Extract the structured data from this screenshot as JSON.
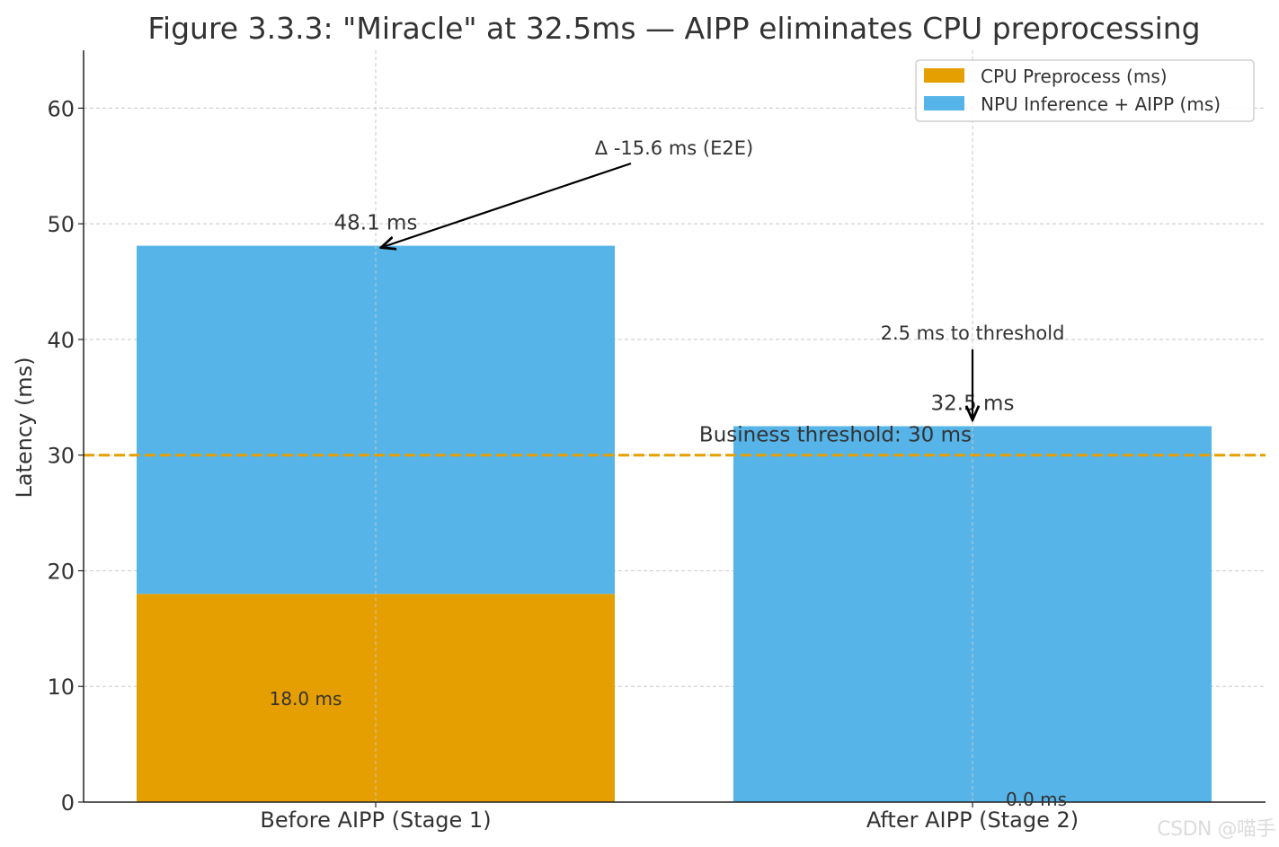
{
  "chart_data": {
    "type": "bar",
    "stacked": true,
    "title": "Figure 3.3.3: \"Miracle\" at 32.5ms — AIPP eliminates CPU preprocessing",
    "xlabel": "",
    "ylabel": "Latency (ms)",
    "ylim": [
      0,
      65
    ],
    "yticks": [
      0,
      10,
      20,
      30,
      40,
      50,
      60
    ],
    "grid": true,
    "legend_position": "top-right",
    "categories": [
      "Before AIPP (Stage 1)",
      "After AIPP (Stage 2)"
    ],
    "series": [
      {
        "name": "CPU Preprocess (ms)",
        "color": "#E69F00",
        "values": [
          18.0,
          0.0
        ]
      },
      {
        "name": "NPU Inference + AIPP (ms)",
        "color": "#56B4E9",
        "values": [
          30.1,
          32.5
        ]
      }
    ],
    "total_labels": [
      "48.1 ms",
      "32.5 ms"
    ],
    "segment_labels": [
      "18.0 ms",
      "0.0 ms"
    ],
    "threshold": {
      "value": 30,
      "label": "Business threshold: 30 ms",
      "color": "#E69F00"
    },
    "annotations": [
      {
        "text": "Δ -15.6 ms (E2E)",
        "target_category": 0,
        "target_value": 48.1
      },
      {
        "text": "2.5 ms to threshold",
        "target_category": 1,
        "target_value": 32.5
      }
    ]
  },
  "watermark": "CSDN @喵手"
}
